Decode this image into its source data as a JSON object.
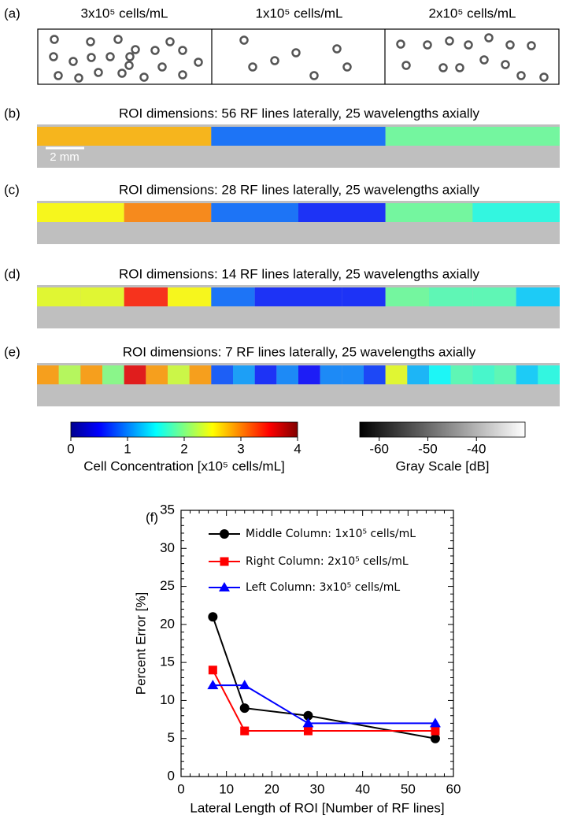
{
  "panel_a": {
    "label": "(a)",
    "columns": [
      "3x10⁵ cells/mL",
      "1x10⁵ cells/mL",
      "2x10⁵ cells/mL"
    ]
  },
  "scale_bar": "2 mm",
  "panels": [
    {
      "label": "(b)",
      "title": "ROI dimensions: 56 RF lines laterally, 25 wavelengths axially",
      "roi_values": [
        2.8,
        0.9,
        1.9
      ]
    },
    {
      "label": "(c)",
      "title": "ROI dimensions: 28 RF lines laterally, 25 wavelengths axially",
      "roi_values": [
        2.5,
        3.0,
        0.9,
        0.6,
        1.9,
        1.6
      ]
    },
    {
      "label": "(d)",
      "title": "ROI dimensions: 14 RF lines laterally, 25 wavelengths axially",
      "roi_values": [
        2.4,
        2.4,
        3.4,
        2.5,
        0.9,
        0.6,
        0.6,
        0.6,
        1.9,
        1.8,
        1.8,
        1.3
      ]
    },
    {
      "label": "(e)",
      "title": "ROI dimensions: 7 RF lines laterally, 25 wavelengths axially",
      "roi_values": [
        2.9,
        2.2,
        2.9,
        2.0,
        3.6,
        2.9,
        2.3,
        2.9,
        0.8,
        1.1,
        0.6,
        1.0,
        0.5,
        1.0,
        1.0,
        0.7,
        2.4,
        1.2,
        1.5,
        1.8,
        1.7,
        1.8,
        1.3,
        1.6
      ]
    }
  ],
  "colorbar": {
    "label": "Cell Concentration [x10⁵ cells/mL]",
    "lim": [
      0,
      4
    ],
    "ticks": [
      0,
      1,
      2,
      3,
      4
    ]
  },
  "graybar": {
    "label": "Gray Scale [dB]",
    "lim": [
      -64,
      -30
    ],
    "ticks": [
      -60,
      -50,
      -40
    ]
  },
  "chart_data": {
    "type": "line",
    "label": "(f)",
    "x_label": "Lateral Length of ROI [Number of RF lines]",
    "y_label": "Percent Error [%]",
    "x": [
      7,
      14,
      28,
      56
    ],
    "series": [
      {
        "name": "Middle Column: 1x10⁵ cells/mL",
        "color": "#000000",
        "marker": "circle",
        "values": [
          21,
          9,
          8,
          5
        ]
      },
      {
        "name": "Right Column: 2x10⁵ cells/mL",
        "color": "#ff0000",
        "marker": "square",
        "values": [
          14,
          6,
          6,
          6
        ]
      },
      {
        "name": "Left Column: 3x10⁵ cells/mL",
        "color": "#0000ff",
        "marker": "triangle",
        "values": [
          12,
          12,
          7,
          7
        ]
      }
    ],
    "xlim": [
      0,
      60
    ],
    "xticks": [
      0,
      10,
      20,
      30,
      40,
      50,
      60
    ],
    "ylim": [
      0,
      35
    ],
    "yticks": [
      0,
      5,
      10,
      15,
      20,
      25,
      30,
      35
    ]
  }
}
